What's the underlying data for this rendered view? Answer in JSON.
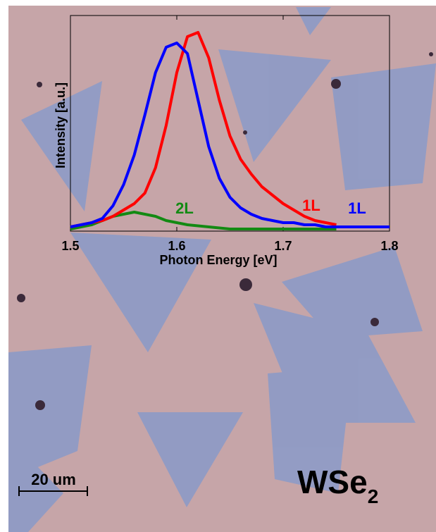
{
  "chart_data": {
    "type": "line",
    "xlabel": "Photon Energy [eV]",
    "ylabel": "Intensity [a.u.]",
    "x": [
      1.5,
      1.51,
      1.52,
      1.53,
      1.54,
      1.55,
      1.56,
      1.57,
      1.58,
      1.59,
      1.6,
      1.61,
      1.62,
      1.63,
      1.64,
      1.65,
      1.66,
      1.67,
      1.68,
      1.69,
      1.7,
      1.71,
      1.72,
      1.73,
      1.74,
      1.75,
      1.76,
      1.77,
      1.78,
      1.79,
      1.8
    ],
    "series": [
      {
        "name": "2L",
        "color": "#138a13",
        "values": [
          0.01,
          0.02,
          0.03,
          0.05,
          0.07,
          0.08,
          0.09,
          0.08,
          0.07,
          0.05,
          0.04,
          0.03,
          0.025,
          0.02,
          0.015,
          0.01,
          0.01,
          0.01,
          0.01,
          0.01,
          0.01,
          0.01,
          0.01,
          0.01,
          0.01,
          0.01,
          null,
          null,
          null,
          null,
          null
        ]
      },
      {
        "name": "1L",
        "color": "#ff0000",
        "values": [
          0.02,
          0.03,
          0.04,
          0.05,
          0.07,
          0.1,
          0.13,
          0.18,
          0.3,
          0.5,
          0.75,
          0.92,
          0.94,
          0.82,
          0.62,
          0.45,
          0.34,
          0.27,
          0.21,
          0.17,
          0.13,
          0.1,
          0.07,
          0.05,
          0.04,
          0.03,
          null,
          null,
          null,
          null,
          null
        ]
      },
      {
        "name": "1L",
        "color": "#0000ff",
        "values": [
          0.02,
          0.03,
          0.04,
          0.06,
          0.12,
          0.22,
          0.36,
          0.55,
          0.75,
          0.87,
          0.89,
          0.84,
          0.62,
          0.4,
          0.25,
          0.16,
          0.11,
          0.08,
          0.06,
          0.05,
          0.04,
          0.04,
          0.03,
          0.03,
          0.02,
          0.02,
          0.02,
          0.02,
          0.02,
          0.02,
          0.02
        ]
      }
    ],
    "xlim": [
      1.5,
      1.8
    ],
    "xticks": [
      1.5,
      1.6,
      1.7,
      1.8
    ],
    "ylim": [
      0,
      1.02
    ]
  },
  "scale_bar_label": "20 um",
  "sample_label": {
    "base": "WSe",
    "subscript": "2"
  }
}
